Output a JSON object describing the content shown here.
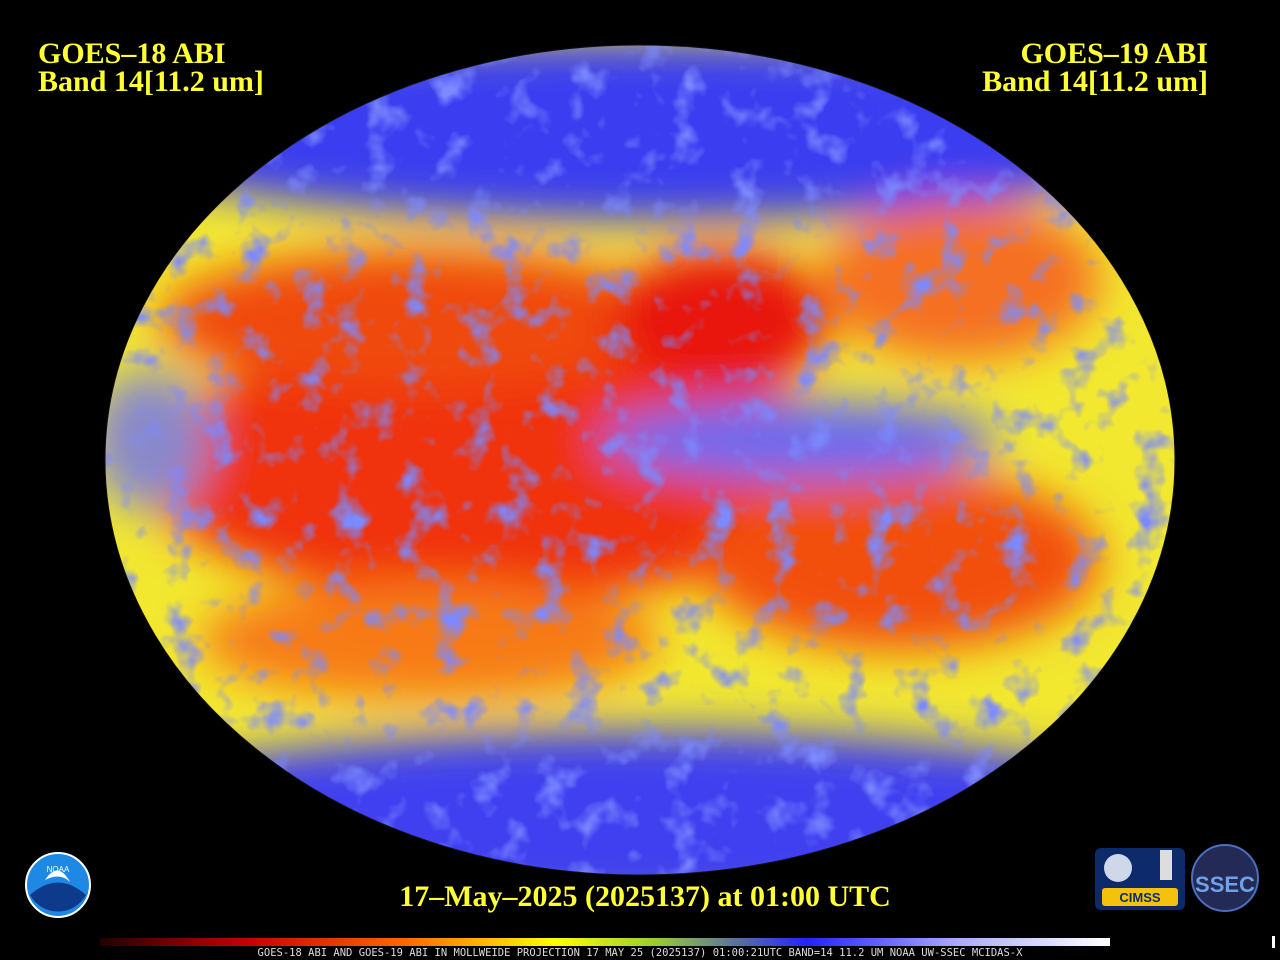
{
  "header": {
    "left": {
      "satellite": "GOES–18 ABI",
      "band": "Band 14[11.2 um]"
    },
    "right": {
      "satellite": "GOES–19 ABI",
      "band": "Band 14[11.2 um]"
    }
  },
  "timestamp": "17–May–2025 (2025137) at 01:00 UTC",
  "logos": {
    "noaa": "NOAA",
    "cimss": "CIMSS",
    "ssec": "SSEC"
  },
  "footer": "GOES-18 ABI AND GOES-19 ABI IN MOLLWEIDE PROJECTION 17 MAY 25 (2025137) 01:00:21UTC BAND=14 11.2 UM NOAA UW-SSEC MCIDAS-X"
}
